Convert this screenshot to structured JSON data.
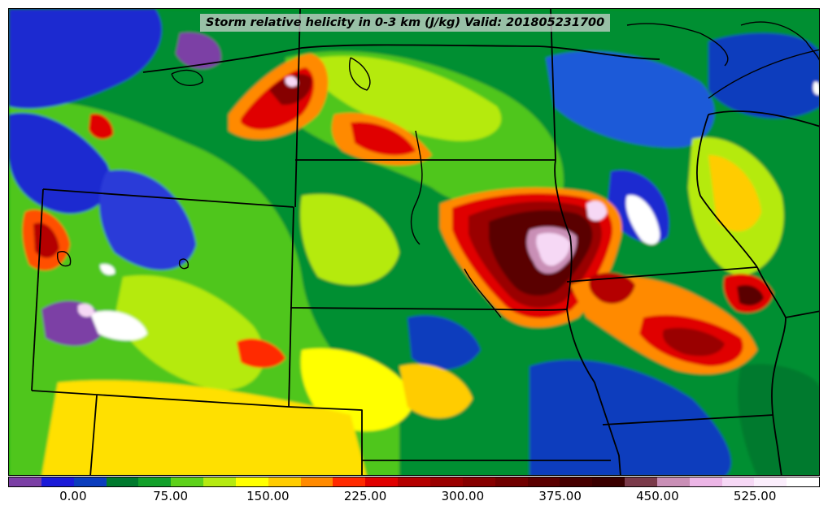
{
  "title": "Storm relative helicity in 0-3 km (J/kg) Valid: 201805231700",
  "colorbar": {
    "colors": [
      "#7b3fa5",
      "#1a1ad8",
      "#0a3dbd",
      "#007a2e",
      "#12a02a",
      "#5ed11a",
      "#b5ea10",
      "#ffff00",
      "#ffcc00",
      "#ff8a00",
      "#ff2a00",
      "#e00000",
      "#b40000",
      "#9a0000",
      "#860000",
      "#700000",
      "#5a0000",
      "#460000",
      "#3a0000",
      "#7a3a4a",
      "#c98fb6",
      "#ecb6e6",
      "#f6d8f5",
      "#fbeefc",
      "#ffffff"
    ],
    "tick_labels": [
      "0.00",
      "75.00",
      "150.00",
      "225.00",
      "300.00",
      "375.00",
      "450.00",
      "525.00"
    ],
    "tick_values": [
      0,
      75,
      150,
      225,
      300,
      375,
      450,
      525
    ],
    "range": [
      -50,
      575
    ]
  }
}
